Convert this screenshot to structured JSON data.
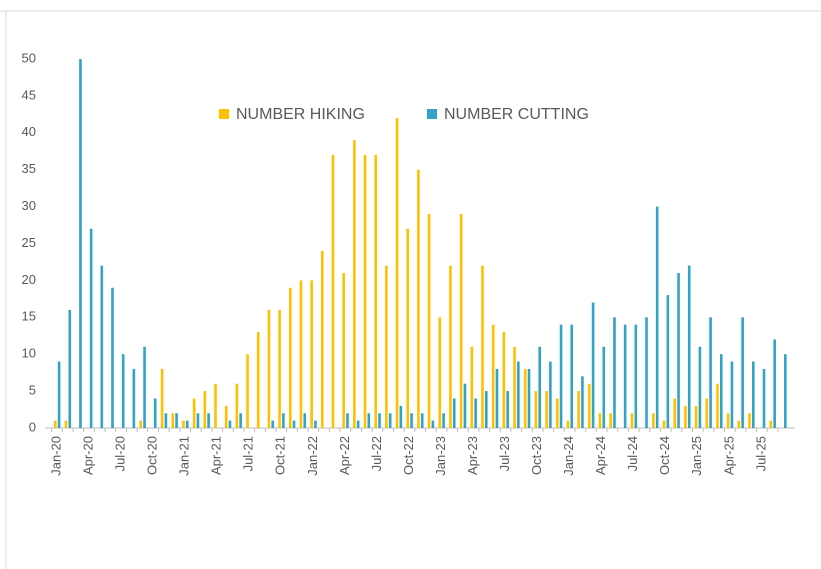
{
  "chart_data": {
    "type": "bar",
    "categories": [
      "Jan-20",
      null,
      null,
      "Apr-20",
      null,
      null,
      "Jul-20",
      null,
      null,
      "Oct-20",
      null,
      null,
      "Jan-21",
      null,
      null,
      "Apr-21",
      null,
      null,
      "Jul-21",
      null,
      null,
      "Oct-21",
      null,
      null,
      "Jan-22",
      null,
      null,
      "Apr-22",
      null,
      null,
      "Jul-22",
      null,
      null,
      "Oct-22",
      null,
      null,
      "Jan-23",
      null,
      null,
      "Apr-23",
      null,
      null,
      "Jul-23",
      null,
      null,
      "Oct-23",
      null,
      null,
      "Jan-24",
      null,
      null,
      "Apr-24",
      null,
      null,
      "Jul-24",
      null,
      null,
      "Oct-24",
      null,
      null,
      "Jan-25",
      null,
      null,
      "Apr-25",
      null,
      null,
      "Jul-25",
      null,
      null
    ],
    "series": [
      {
        "name": "NUMBER HIKING",
        "color": "#ffc000",
        "values": [
          1,
          1,
          0,
          0,
          0,
          0,
          0,
          0,
          1,
          0,
          8,
          2,
          1,
          4,
          5,
          6,
          3,
          6,
          10,
          13,
          16,
          16,
          19,
          20,
          20,
          24,
          37,
          21,
          39,
          37,
          37,
          22,
          42,
          27,
          35,
          29,
          15,
          22,
          29,
          11,
          22,
          14,
          13,
          11,
          8,
          5,
          5,
          4,
          1,
          5,
          6,
          2,
          2,
          0,
          2,
          0,
          2,
          1,
          4,
          3,
          3,
          4,
          6,
          2,
          1,
          2,
          0,
          1,
          0
        ]
      },
      {
        "name": "NUMBER CUTTING",
        "color": "#31a3c4",
        "values": [
          9,
          16,
          50,
          27,
          22,
          19,
          10,
          8,
          11,
          4,
          2,
          2,
          1,
          2,
          2,
          0,
          1,
          2,
          0,
          0,
          1,
          2,
          1,
          2,
          1,
          0,
          0,
          2,
          1,
          2,
          2,
          2,
          3,
          2,
          2,
          1,
          2,
          4,
          6,
          4,
          5,
          8,
          5,
          9,
          8,
          11,
          9,
          14,
          14,
          7,
          17,
          11,
          15,
          14,
          14,
          15,
          30,
          18,
          21,
          22,
          11,
          15,
          10,
          9,
          15,
          9,
          8,
          12,
          10
        ]
      }
    ],
    "ylim": [
      0,
      50
    ],
    "yticks": [
      0,
      5,
      10,
      15,
      20,
      25,
      30,
      35,
      40,
      45,
      50
    ],
    "grid": false,
    "legend": "top"
  }
}
